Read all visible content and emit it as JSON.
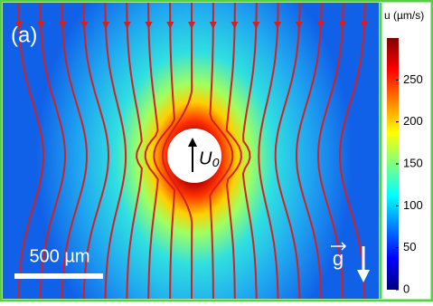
{
  "chart_data": {
    "type": "heatmap",
    "panel_label": "(a)",
    "colorbar": {
      "label": "u (µm/s)",
      "ylim": [
        0,
        300
      ],
      "yticks": [
        0,
        50,
        100,
        150,
        200,
        250
      ],
      "colors": [
        "#00007f",
        "#0000ff",
        "#0080ff",
        "#00ffff",
        "#80ff80",
        "#ffff00",
        "#ff8000",
        "#ff0000",
        "#7f0000"
      ]
    },
    "sphere_label": "U₀",
    "scale_bar_label": "500 µm",
    "gravity_label": "g",
    "streamline_color": "#d42020"
  }
}
